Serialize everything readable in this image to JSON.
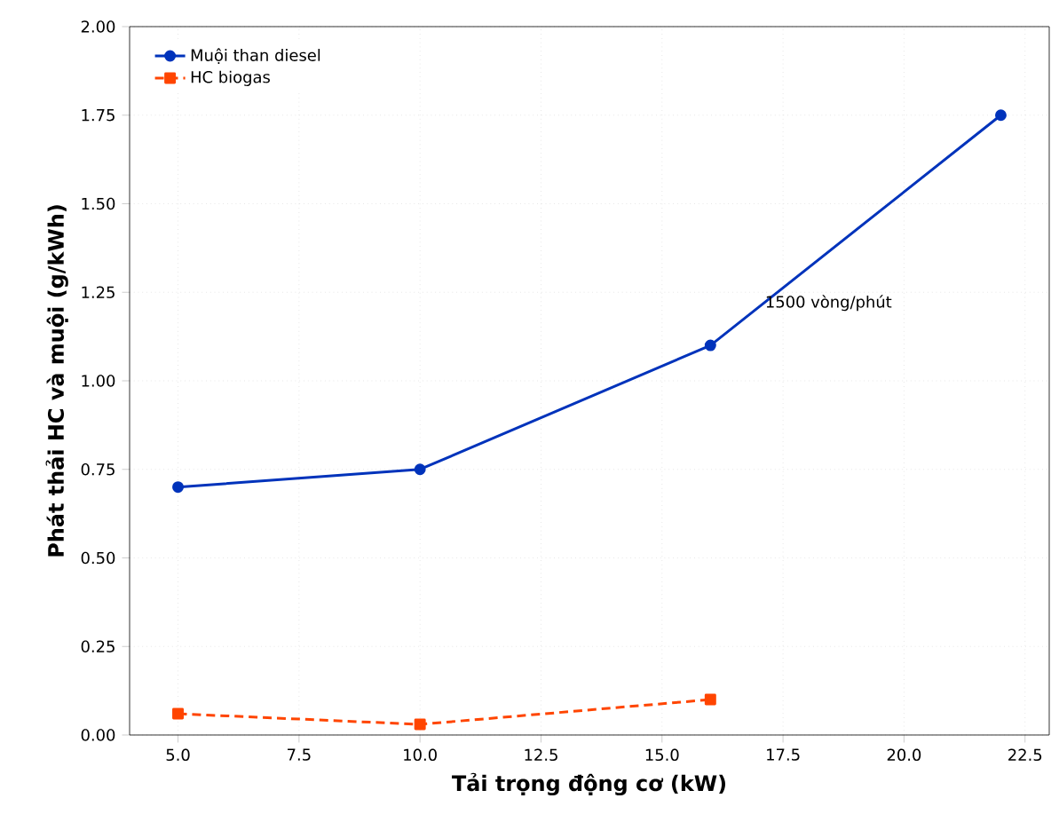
{
  "chart_data": {
    "type": "line",
    "xlabel": "Tải trọng động cơ (kW)",
    "ylabel": "Phát thải HC và muội (g/kWh)",
    "xlim": [
      4.0,
      23.0
    ],
    "xticks": [
      {
        "value": 5,
        "label": "5.0"
      },
      {
        "value": 7.5,
        "label": "7.5"
      },
      {
        "value": 10,
        "label": "10.0"
      },
      {
        "value": 12.5,
        "label": "12.5"
      },
      {
        "value": 15,
        "label": "15.0"
      },
      {
        "value": 17.5,
        "label": "17.5"
      },
      {
        "value": 20,
        "label": "20.0"
      },
      {
        "value": 22.5,
        "label": "22.5"
      }
    ],
    "ylim": [
      0,
      2
    ],
    "yticks": [
      {
        "value": 0,
        "label": "0.00"
      },
      {
        "value": 0.25,
        "label": "0.25"
      },
      {
        "value": 0.5,
        "label": "0.50"
      },
      {
        "value": 0.75,
        "label": "0.75"
      },
      {
        "value": 1.0,
        "label": "1.00"
      },
      {
        "value": 1.25,
        "label": "1.25"
      },
      {
        "value": 1.5,
        "label": "1.50"
      },
      {
        "value": 1.75,
        "label": "1.75"
      },
      {
        "value": 2.0,
        "label": "2.00"
      }
    ],
    "grid": true,
    "legend": "top left",
    "annotations": [
      {
        "text": "1500 vòng/phút",
        "x": 17,
        "y": 1.22
      }
    ],
    "series": [
      {
        "name": "Muội than diesel",
        "color": "#0033bb",
        "x": [
          5,
          10,
          16,
          22
        ],
        "values": [
          0.7,
          0.75,
          1.1,
          1.75
        ],
        "marker": "circle",
        "line_style": "solid"
      },
      {
        "name": "HC biogas",
        "color": "#ff4500",
        "x": [
          5,
          10,
          16
        ],
        "values": [
          0.06,
          0.03,
          0.1
        ],
        "marker": "square",
        "line_style": "dashed"
      }
    ]
  }
}
